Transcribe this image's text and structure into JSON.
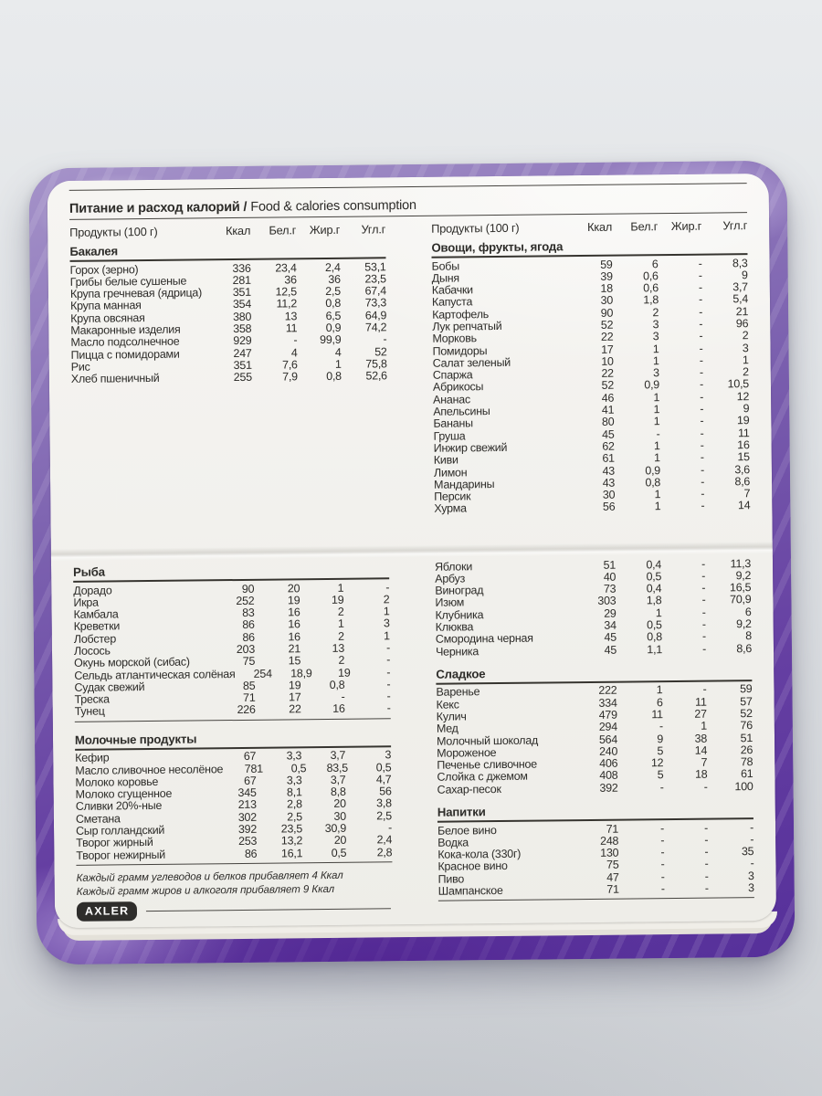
{
  "header": {
    "title_ru": "Питание и расход калорий /",
    "title_en": "Food & calories consumption",
    "product_col": "Продукты (100 г)",
    "cols": [
      "Ккал",
      "Бел.г",
      "Жир.г",
      "Угл.г"
    ]
  },
  "colors": {
    "cover_purple": "#653fa2",
    "page": "#f1f0ec",
    "ink": "#2d2c29"
  },
  "top_left": {
    "section": "Бакалея",
    "rows": [
      [
        "Горох (зерно)",
        "336",
        "23,4",
        "2,4",
        "53,1"
      ],
      [
        "Грибы белые сушеные",
        "281",
        "36",
        "36",
        "23,5"
      ],
      [
        "Крупа гречневая (ядрица)",
        "351",
        "12,5",
        "2,5",
        "67,4"
      ],
      [
        "Крупа манная",
        "354",
        "11,2",
        "0,8",
        "73,3"
      ],
      [
        "Крупа овсяная",
        "380",
        "13",
        "6,5",
        "64,9"
      ],
      [
        "Макаронные изделия",
        "358",
        "11",
        "0,9",
        "74,2"
      ],
      [
        "Масло подсолнечное",
        "929",
        "-",
        "99,9",
        "-"
      ],
      [
        "Пицца с помидорами",
        "247",
        "4",
        "4",
        "52"
      ],
      [
        "Рис",
        "351",
        "7,6",
        "1",
        "75,8"
      ],
      [
        "Хлеб пшеничный",
        "255",
        "7,9",
        "0,8",
        "52,6"
      ]
    ]
  },
  "top_right": {
    "section": "Овощи, фрукты, ягода",
    "rows": [
      [
        "Бобы",
        "59",
        "6",
        "-",
        "8,3"
      ],
      [
        "Дыня",
        "39",
        "0,6",
        "-",
        "9"
      ],
      [
        "Кабачки",
        "18",
        "0,6",
        "-",
        "3,7"
      ],
      [
        "Капуста",
        "30",
        "1,8",
        "-",
        "5,4"
      ],
      [
        "Картофель",
        "90",
        "2",
        "-",
        "21"
      ],
      [
        "Лук репчатый",
        "52",
        "3",
        "-",
        "96"
      ],
      [
        "Морковь",
        "22",
        "3",
        "-",
        "2"
      ],
      [
        "Помидоры",
        "17",
        "1",
        "-",
        "3"
      ],
      [
        "Салат зеленый",
        "10",
        "1",
        "-",
        "1"
      ],
      [
        "Спаржа",
        "22",
        "3",
        "-",
        "2"
      ],
      [
        "Абрикосы",
        "52",
        "0,9",
        "-",
        "10,5"
      ],
      [
        "Ананас",
        "46",
        "1",
        "-",
        "12"
      ],
      [
        "Апельсины",
        "41",
        "1",
        "-",
        "9"
      ],
      [
        "Бананы",
        "80",
        "1",
        "-",
        "19"
      ],
      [
        "Груша",
        "45",
        "-",
        "-",
        "11"
      ],
      [
        "Инжир свежий",
        "62",
        "1",
        "-",
        "16"
      ],
      [
        "Киви",
        "61",
        "1",
        "-",
        "15"
      ],
      [
        "Лимон",
        "43",
        "0,9",
        "-",
        "3,6"
      ],
      [
        "Мандарины",
        "43",
        "0,8",
        "-",
        "8,6"
      ],
      [
        "Персик",
        "30",
        "1",
        "-",
        "7"
      ],
      [
        "Хурма",
        "56",
        "1",
        "-",
        "14"
      ]
    ]
  },
  "bottom_left_fish": {
    "section": "Рыба",
    "rows": [
      [
        "Дорадо",
        "90",
        "20",
        "1",
        "-"
      ],
      [
        "Икра",
        "252",
        "19",
        "19",
        "2"
      ],
      [
        "Камбала",
        "83",
        "16",
        "2",
        "1"
      ],
      [
        "Креветки",
        "86",
        "16",
        "1",
        "3"
      ],
      [
        "Лобстер",
        "86",
        "16",
        "2",
        "1"
      ],
      [
        "Лосось",
        "203",
        "21",
        "13",
        "-"
      ],
      [
        "Окунь морской (сибас)",
        "75",
        "15",
        "2",
        "-"
      ],
      [
        "Сельдь атлантическая солёная",
        "254",
        "18,9",
        "19",
        "-"
      ],
      [
        "Судак свежий",
        "85",
        "19",
        "0,8",
        "-"
      ],
      [
        "Треска",
        "71",
        "17",
        "-",
        "-"
      ],
      [
        "Тунец",
        "226",
        "22",
        "16",
        "-"
      ]
    ]
  },
  "bottom_left_dairy": {
    "section": "Молочные продукты",
    "rows": [
      [
        "Кефир",
        "67",
        "3,3",
        "3,7",
        "3"
      ],
      [
        "Масло сливочное несолёное",
        "781",
        "0,5",
        "83,5",
        "0,5"
      ],
      [
        "Молоко коровье",
        "67",
        "3,3",
        "3,7",
        "4,7"
      ],
      [
        "Молоко сгущенное",
        "345",
        "8,1",
        "8,8",
        "56"
      ],
      [
        "Сливки 20%-ные",
        "213",
        "2,8",
        "20",
        "3,8"
      ],
      [
        "Сметана",
        "302",
        "2,5",
        "30",
        "2,5"
      ],
      [
        "Сыр голландский",
        "392",
        "23,5",
        "30,9",
        "-"
      ],
      [
        "Творог жирный",
        "253",
        "13,2",
        "20",
        "2,4"
      ],
      [
        "Творог нежирный",
        "86",
        "16,1",
        "0,5",
        "2,8"
      ]
    ]
  },
  "bottom_right_fruit_cont": {
    "rows": [
      [
        "Яблоки",
        "51",
        "0,4",
        "-",
        "11,3"
      ],
      [
        "Арбуз",
        "40",
        "0,5",
        "-",
        "9,2"
      ],
      [
        "Виноград",
        "73",
        "0,4",
        "-",
        "16,5"
      ],
      [
        "Изюм",
        "303",
        "1,8",
        "-",
        "70,9"
      ],
      [
        "Клубника",
        "29",
        "1",
        "-",
        "6"
      ],
      [
        "Клюква",
        "34",
        "0,5",
        "-",
        "9,2"
      ],
      [
        "Смородина черная",
        "45",
        "0,8",
        "-",
        "8"
      ],
      [
        "Черника",
        "45",
        "1,1",
        "-",
        "8,6"
      ]
    ]
  },
  "bottom_right_sweets": {
    "section": "Сладкое",
    "rows": [
      [
        "Варенье",
        "222",
        "1",
        "-",
        "59"
      ],
      [
        "Кекс",
        "334",
        "6",
        "11",
        "57"
      ],
      [
        "Кулич",
        "479",
        "11",
        "27",
        "52"
      ],
      [
        "Мед",
        "294",
        "-",
        "1",
        "76"
      ],
      [
        "Молочный шоколад",
        "564",
        "9",
        "38",
        "51"
      ],
      [
        "Мороженое",
        "240",
        "5",
        "14",
        "26"
      ],
      [
        "Печенье сливочное",
        "406",
        "12",
        "7",
        "78"
      ],
      [
        "Слойка с джемом",
        "408",
        "5",
        "18",
        "61"
      ],
      [
        "Сахар-песок",
        "392",
        "-",
        "-",
        "100"
      ]
    ]
  },
  "bottom_right_drinks": {
    "section": "Напитки",
    "rows": [
      [
        "Белое вино",
        "71",
        "-",
        "-",
        "-"
      ],
      [
        "Водка",
        "248",
        "-",
        "-",
        "-"
      ],
      [
        "Кока-кола (330г)",
        "130",
        "-",
        "-",
        "35"
      ],
      [
        "Красное вино",
        "75",
        "-",
        "-",
        "-"
      ],
      [
        "Пиво",
        "47",
        "-",
        "-",
        "3"
      ],
      [
        "Шампанское",
        "71",
        "-",
        "-",
        "3"
      ]
    ]
  },
  "footnotes": [
    "Каждый грамм углеводов и белков прибавляет 4 Ккал",
    "Каждый грамм жиров и алкоголя прибавляет 9 Ккал"
  ],
  "brand": "AXLER"
}
